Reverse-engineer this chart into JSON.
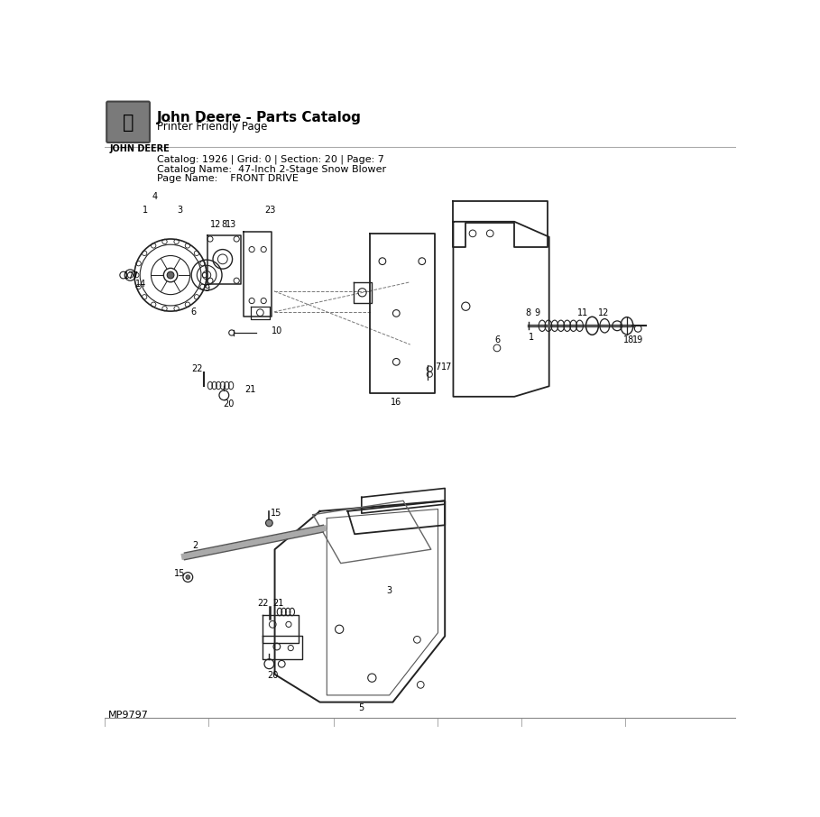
{
  "title": "John Deere - Parts Catalog",
  "subtitle": "Printer Friendly Page",
  "brand": "JOHN DEERE",
  "catalog_info": "Catalog: 1926 | Grid: 0 | Section: 20 | Page: 7",
  "catalog_name": "Catalog Name:  47-Inch 2-Stage Snow Blower",
  "page_name": "Page Name:    FRONT DRIVE",
  "footer_code": "MP9797",
  "bg_color": "#ffffff",
  "line_color": "#222222",
  "dash_color": "#777777",
  "label_color": "#000000"
}
